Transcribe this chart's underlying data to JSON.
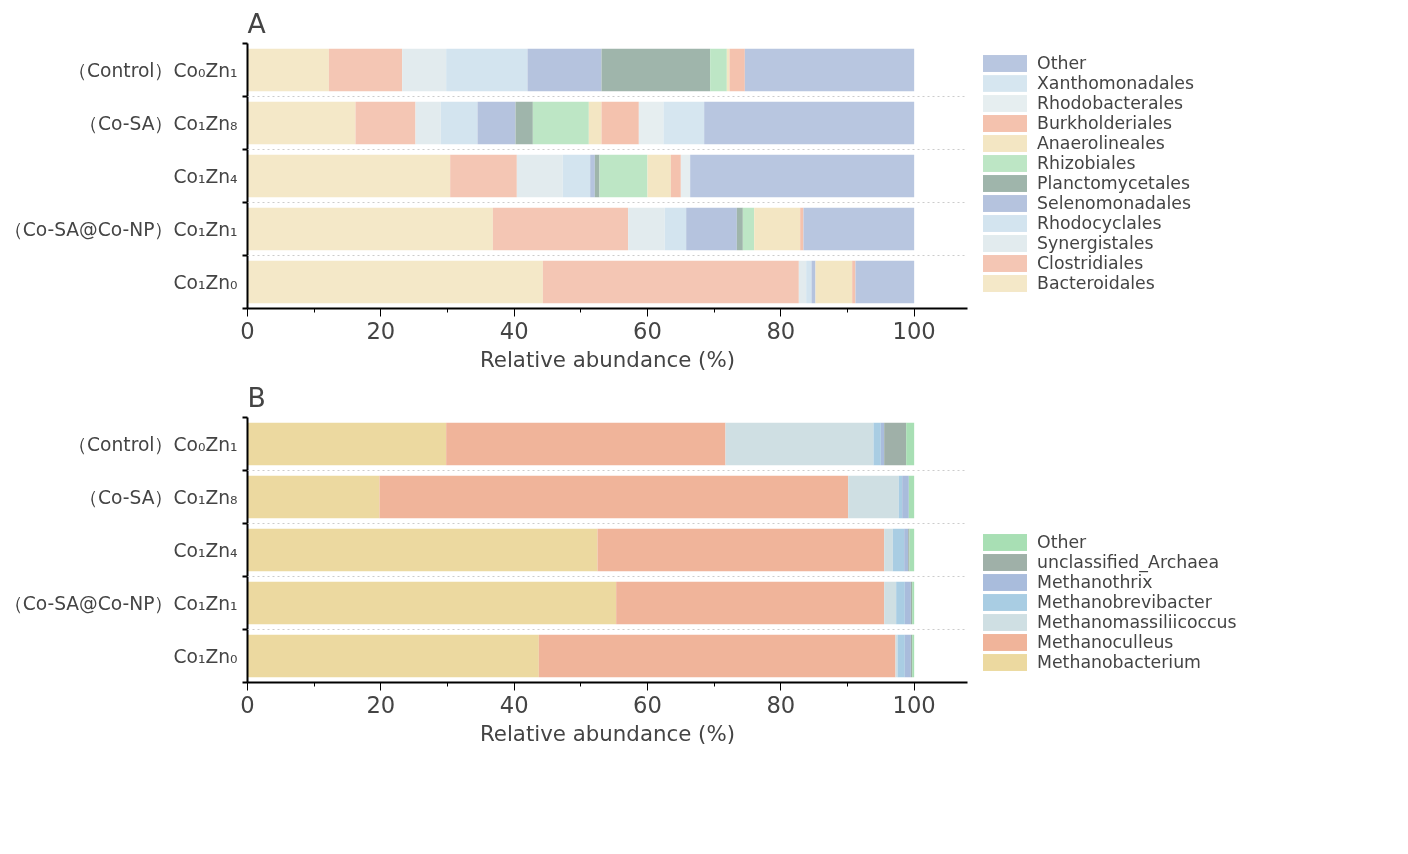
{
  "chart_data": [
    {
      "type": "bar",
      "orientation": "horizontal",
      "stacked": true,
      "title": "A",
      "xlabel": "Relative abundance (%)",
      "categories": [
        "（Control）Co₀Zn₁",
        "（Co-SA）Co₁Zn₈",
        "Co₁Zn₄",
        "（Co-SA@Co-NP）Co₁Zn₁",
        "Co₁Zn₀"
      ],
      "xlim": [
        0,
        108
      ],
      "xticks": [
        0,
        20,
        40,
        60,
        80,
        100
      ],
      "grid": "y",
      "legend": "right",
      "series": [
        {
          "name": "Bacteroidales",
          "color": "#f4e8c8",
          "values": [
            12.2,
            16.2,
            30.4,
            36.8,
            44.3
          ]
        },
        {
          "name": "Clostridiales",
          "color": "#f4c6b4",
          "values": [
            11.0,
            9.0,
            10.0,
            20.3,
            38.4
          ]
        },
        {
          "name": "Synergistales",
          "color": "#e2ebee",
          "values": [
            6.6,
            3.8,
            6.9,
            5.5,
            1.1
          ]
        },
        {
          "name": "Rhodocyclales",
          "color": "#d3e4ef",
          "values": [
            12.2,
            5.5,
            4.1,
            3.2,
            0.8
          ]
        },
        {
          "name": "Selenomonadales",
          "color": "#b5c3de",
          "values": [
            11.1,
            5.7,
            0.7,
            7.6,
            0.6
          ]
        },
        {
          "name": "Planctomycetales",
          "color": "#9fb5ab",
          "values": [
            16.3,
            2.6,
            0.7,
            0.9,
            0
          ]
        },
        {
          "name": "Rhizobiales",
          "color": "#bde6c5",
          "values": [
            2.5,
            8.4,
            7.2,
            1.7,
            0
          ]
        },
        {
          "name": "Anaerolineales",
          "color": "#f3e6c3",
          "values": [
            0.4,
            1.9,
            3.5,
            6.9,
            5.5
          ]
        },
        {
          "name": "Burkholderiales",
          "color": "#f4c2ae",
          "values": [
            2.3,
            5.6,
            1.5,
            0.5,
            0.5
          ]
        },
        {
          "name": "Rhodobacterales",
          "color": "#e6eef0",
          "values": [
            null,
            3.7,
            1.4,
            0,
            0
          ]
        },
        {
          "name": "Xanthomonadales",
          "color": "#d6e6f0",
          "values": [
            null,
            6.1,
            null,
            0,
            0
          ]
        },
        {
          "name": "Other",
          "color": "#b8c6e0",
          "values": [
            25.4,
            31.5,
            33.6,
            16.6,
            8.8
          ]
        }
      ]
    },
    {
      "type": "bar",
      "orientation": "horizontal",
      "stacked": true,
      "title": "B",
      "xlabel": "Relative abundance (%)",
      "categories": [
        "（Control）Co₀Zn₁",
        "（Co-SA）Co₁Zn₈",
        "Co₁Zn₄",
        "（Co-SA@Co-NP）Co₁Zn₁",
        "Co₁Zn₀"
      ],
      "xlim": [
        0,
        108
      ],
      "xticks": [
        0,
        20,
        40,
        60,
        80,
        100
      ],
      "grid": "y",
      "legend": "right",
      "series": [
        {
          "name": "Methanobacterium",
          "color": "#ecd9a0",
          "values": [
            29.8,
            19.8,
            52.5,
            55.3,
            43.7
          ]
        },
        {
          "name": "Methanoculleus",
          "color": "#f0b49a",
          "values": [
            41.9,
            70.3,
            43.0,
            40.2,
            53.5
          ]
        },
        {
          "name": "Methanomassiliicoccus",
          "color": "#cfdfe3",
          "values": [
            22.2,
            7.6,
            1.3,
            1.8,
            0.3
          ]
        },
        {
          "name": "Methanobrevibacter",
          "color": "#a9cde3",
          "values": [
            1.1,
            0.5,
            1.7,
            1.3,
            1.1
          ]
        },
        {
          "name": "Methanothrix",
          "color": "#a9bcdc",
          "values": [
            0.5,
            1.0,
            0.6,
            0.9,
            0.9
          ]
        },
        {
          "name": "unclassified_Archaea",
          "color": "#9fb0a8",
          "values": [
            3.3,
            0,
            0.2,
            0.2,
            0.2
          ]
        },
        {
          "name": "Other",
          "color": "#a8dfb4",
          "values": [
            1.2,
            0.8,
            0.7,
            0.3,
            0.3
          ]
        }
      ]
    }
  ]
}
